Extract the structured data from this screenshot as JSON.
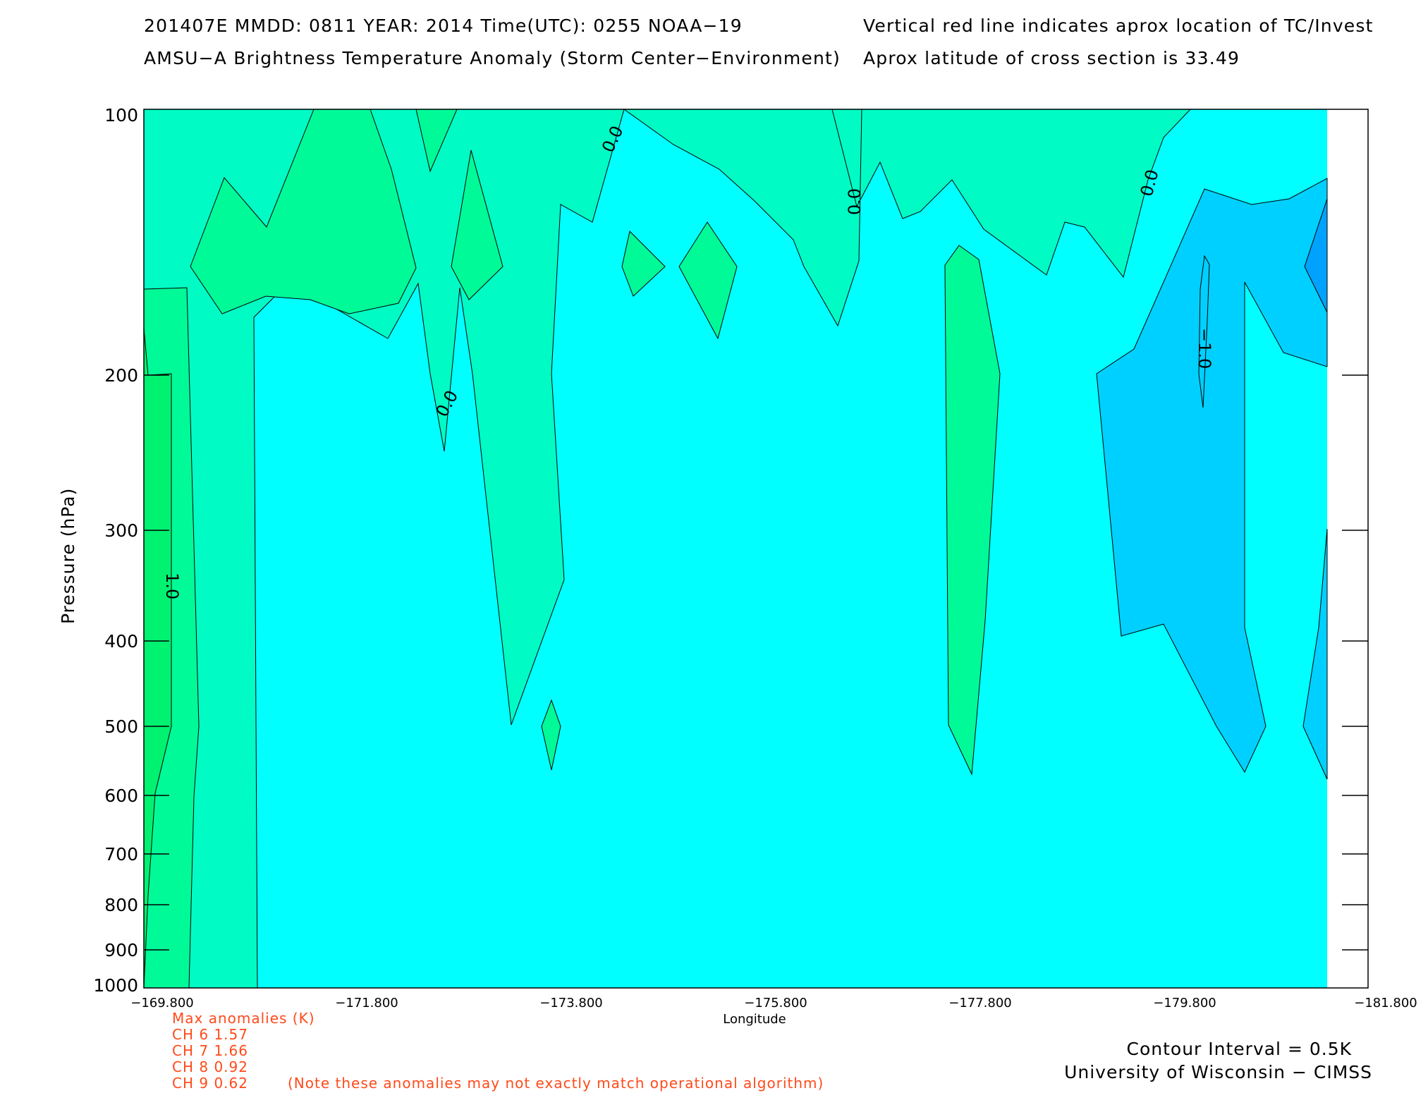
{
  "header": {
    "line1_left": "201407E  MMDD: 0811 YEAR: 2014 Time(UTC): 0255 NOAA−19",
    "line2_left": "AMSU−A Brightness Temperature Anomaly (Storm Center−Environment)",
    "line1_right": "Vertical red line indicates aprox location of TC/Invest",
    "line2_right": "Aprox latitude of cross section is 33.49"
  },
  "chart_data": {
    "type": "heatmap",
    "subtype": "filled contour cross-section",
    "title": "AMSU−A Brightness Temperature Anomaly (Storm Center−Environment)",
    "xlabel": "Longitude",
    "ylabel": "Pressure (hPa)",
    "xlim": [
      -169.8,
      -181.8
    ],
    "ylim": [
      1000,
      100
    ],
    "x_ticks": [
      "−169.800",
      "−171.800",
      "−173.800",
      "−175.800",
      "−177.800",
      "−179.800",
      "−181.800"
    ],
    "y_ticks": [
      "100",
      "200",
      "300",
      "400",
      "500",
      "600",
      "700",
      "800",
      "900",
      "1000"
    ],
    "contour_interval_K": 0.5,
    "contour_labels": [
      "0.0",
      "0.0",
      "0.0",
      "0.0",
      "1.0",
      "−1.0"
    ],
    "colors": {
      "anom_pos_1_0": "#00f270",
      "anom_pos_0_5": "#00fa98",
      "anom_0_0": "#00fcc4",
      "anom_neg_0_5": "#00ffff",
      "anom_neg_1_0": "#00d0ff",
      "anom_neg_1_5": "#00a2ff"
    }
  },
  "anomalies": {
    "title": "Max anomalies (K)",
    "rows": [
      {
        "label": "CH 6  1.57"
      },
      {
        "label": "CH 7  1.66"
      },
      {
        "label": "CH 8  0.92"
      },
      {
        "label": "CH 9  0.62"
      }
    ],
    "note": "(Note these anomalies may not exactly match operational algorithm)"
  },
  "footer": {
    "contour_interval": "Contour Interval = 0.5K",
    "credit": "University of Wisconsin − CIMSS"
  }
}
